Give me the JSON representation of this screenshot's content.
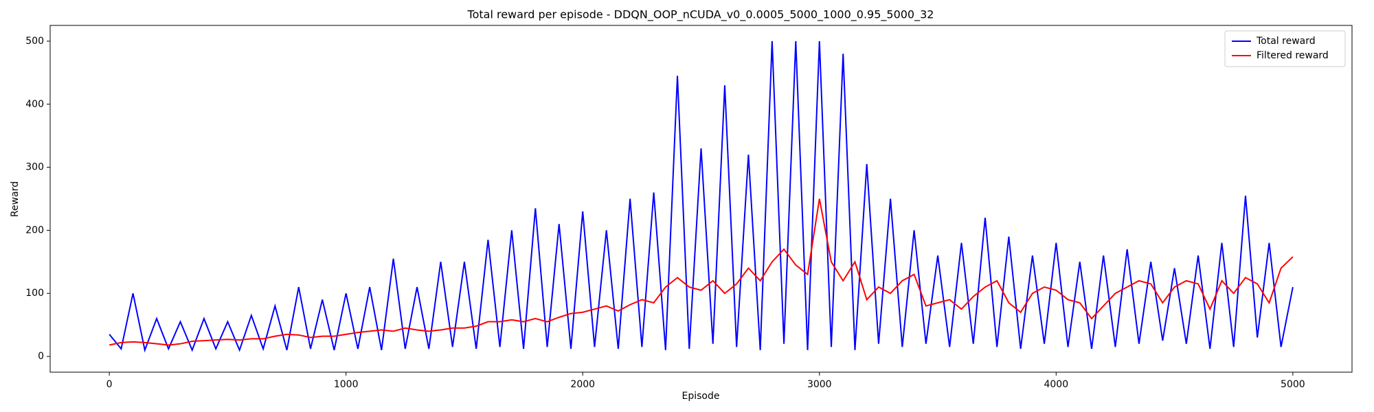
{
  "chart_data": {
    "type": "line",
    "title": "Total reward per episode - DDQN_OOP_nCUDA_v0_0.0005_5000_1000_0.95_5000_32",
    "x_label": "Episode",
    "y_label": "Reward",
    "x": [
      0,
      50,
      100,
      150,
      200,
      250,
      300,
      350,
      400,
      450,
      500,
      550,
      600,
      650,
      700,
      750,
      800,
      850,
      900,
      950,
      1000,
      1050,
      1100,
      1150,
      1200,
      1250,
      1300,
      1350,
      1400,
      1450,
      1500,
      1550,
      1600,
      1650,
      1700,
      1750,
      1800,
      1850,
      1900,
      1950,
      2000,
      2050,
      2100,
      2150,
      2200,
      2250,
      2300,
      2350,
      2400,
      2450,
      2500,
      2550,
      2600,
      2650,
      2700,
      2750,
      2800,
      2850,
      2900,
      2950,
      3000,
      3050,
      3100,
      3150,
      3200,
      3250,
      3300,
      3350,
      3400,
      3450,
      3500,
      3550,
      3600,
      3650,
      3700,
      3750,
      3800,
      3850,
      3900,
      3950,
      4000,
      4050,
      4100,
      4150,
      4200,
      4250,
      4300,
      4350,
      4400,
      4450,
      4500,
      4550,
      4600,
      4650,
      4700,
      4750,
      4800,
      4850,
      4900,
      4950,
      5000
    ],
    "series": [
      {
        "name": "Total reward",
        "color": "#0000ff",
        "values": [
          35,
          12,
          100,
          10,
          60,
          12,
          55,
          10,
          60,
          12,
          55,
          10,
          65,
          12,
          80,
          10,
          110,
          12,
          90,
          10,
          100,
          12,
          110,
          10,
          155,
          12,
          110,
          12,
          150,
          15,
          150,
          12,
          185,
          15,
          200,
          12,
          235,
          15,
          210,
          12,
          230,
          15,
          200,
          12,
          250,
          15,
          260,
          10,
          445,
          12,
          330,
          20,
          430,
          15,
          320,
          10,
          500,
          20,
          500,
          10,
          500,
          15,
          480,
          10,
          305,
          20,
          250,
          15,
          200,
          20,
          160,
          15,
          180,
          20,
          220,
          15,
          190,
          12,
          160,
          20,
          180,
          15,
          150,
          12,
          160,
          15,
          170,
          20,
          150,
          25,
          140,
          20,
          160,
          12,
          180,
          15,
          255,
          30,
          180,
          15,
          110
        ]
      },
      {
        "name": "Filtered reward",
        "color": "#ff0000",
        "values": [
          18,
          22,
          23,
          22,
          20,
          18,
          20,
          24,
          25,
          26,
          27,
          26,
          28,
          28,
          32,
          35,
          34,
          30,
          32,
          32,
          35,
          38,
          40,
          42,
          40,
          45,
          42,
          40,
          42,
          45,
          45,
          48,
          55,
          55,
          58,
          55,
          60,
          55,
          62,
          68,
          70,
          75,
          80,
          72,
          82,
          90,
          85,
          110,
          125,
          110,
          105,
          120,
          100,
          115,
          140,
          120,
          150,
          170,
          145,
          130,
          250,
          150,
          120,
          150,
          90,
          110,
          100,
          120,
          130,
          80,
          85,
          90,
          75,
          95,
          110,
          120,
          85,
          70,
          100,
          110,
          105,
          90,
          85,
          60,
          80,
          100,
          110,
          120,
          115,
          85,
          110,
          120,
          115,
          75,
          120,
          100,
          125,
          115,
          85,
          140,
          158
        ]
      }
    ],
    "xlim": [
      -250,
      5250
    ],
    "xticks": [
      0,
      1000,
      2000,
      3000,
      4000,
      5000
    ],
    "ylim": [
      -25,
      525
    ],
    "yticks": [
      0,
      100,
      200,
      300,
      400,
      500
    ],
    "legend": "upper right"
  }
}
